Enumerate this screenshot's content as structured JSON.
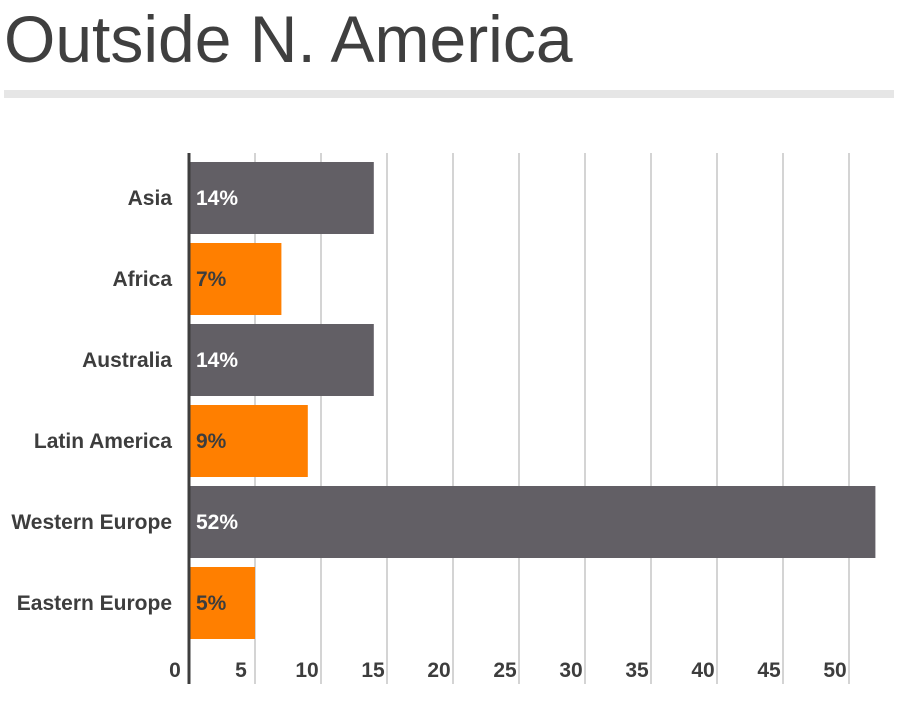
{
  "title": "Outside N. America",
  "colors": {
    "dark": "#625f65",
    "orange": "#ff7f00",
    "grid": "#c6c6c6",
    "axis": "#3d3d3d"
  },
  "chart_data": {
    "type": "bar",
    "orientation": "horizontal",
    "categories": [
      "Asia",
      "Africa",
      "Australia",
      "Latin America",
      "Western Europe",
      "Eastern Europe"
    ],
    "values": [
      14,
      7,
      14,
      9,
      52,
      5
    ],
    "labels": [
      "14%",
      "7%",
      "14%",
      "9%",
      "52%",
      "5%"
    ],
    "bar_colors": [
      "#625f65",
      "#ff7f00",
      "#625f65",
      "#ff7f00",
      "#625f65",
      "#ff7f00"
    ],
    "label_colors": [
      "#ffffff",
      "#3d3d3d",
      "#ffffff",
      "#3d3d3d",
      "#ffffff",
      "#3d3d3d"
    ],
    "xticks": [
      0,
      5,
      10,
      15,
      20,
      25,
      30,
      35,
      40,
      45,
      50
    ],
    "xlim": [
      0,
      52
    ],
    "grid": true,
    "title": "Outside N. America",
    "xlabel": "",
    "ylabel": ""
  }
}
